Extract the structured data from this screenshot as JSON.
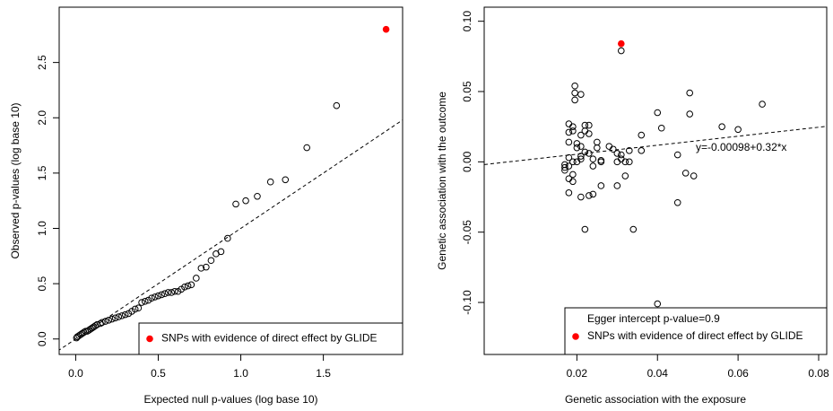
{
  "chart_data": [
    {
      "type": "scatter",
      "x_label": "Expected null p-values (log base 10)",
      "y_label": "Observed p-values (log base 10)",
      "xlim": [
        -0.1,
        1.98
      ],
      "ylim": [
        -0.14,
        3.0
      ],
      "xticks": [
        {
          "value": 0,
          "label": "0.0"
        },
        {
          "value": 0.5,
          "label": "0.5"
        },
        {
          "value": 1,
          "label": "1.0"
        },
        {
          "value": 1.5,
          "label": "1.5"
        }
      ],
      "yticks": [
        {
          "value": 0,
          "label": "0.0"
        },
        {
          "value": 0.5,
          "label": "0.5"
        },
        {
          "value": 1,
          "label": "1.0"
        },
        {
          "value": 1.5,
          "label": "1.5"
        },
        {
          "value": 2,
          "label": "2.0"
        },
        {
          "value": 2.5,
          "label": "2.5"
        }
      ],
      "diagonal": true,
      "series": [
        {
          "color": "#000000",
          "filled": false,
          "x": [
            1.58,
            1.4,
            1.27,
            1.18,
            1.1,
            1.03,
            0.97,
            0.92,
            0.88,
            0.85,
            0.82,
            0.79,
            0.76,
            0.73,
            0.7,
            0.68,
            0.66,
            0.64,
            0.62,
            0.6,
            0.58,
            0.56,
            0.54,
            0.52,
            0.5,
            0.48,
            0.46,
            0.44,
            0.42,
            0.4,
            0.38,
            0.36,
            0.34,
            0.32,
            0.3,
            0.28,
            0.26,
            0.24,
            0.22,
            0.2,
            0.18,
            0.16,
            0.15,
            0.13,
            0.12,
            0.11,
            0.1,
            0.09,
            0.08,
            0.07,
            0.06,
            0.05,
            0.04,
            0.03,
            0.02,
            0.01,
            0.005
          ],
          "values": [
            2.11,
            1.73,
            1.44,
            1.42,
            1.29,
            1.25,
            1.22,
            0.91,
            0.79,
            0.77,
            0.71,
            0.65,
            0.64,
            0.55,
            0.49,
            0.48,
            0.47,
            0.45,
            0.43,
            0.43,
            0.42,
            0.42,
            0.41,
            0.4,
            0.39,
            0.38,
            0.37,
            0.35,
            0.34,
            0.33,
            0.28,
            0.27,
            0.25,
            0.23,
            0.22,
            0.21,
            0.2,
            0.19,
            0.18,
            0.17,
            0.16,
            0.15,
            0.14,
            0.13,
            0.12,
            0.11,
            0.1,
            0.09,
            0.08,
            0.07,
            0.07,
            0.06,
            0.05,
            0.04,
            0.03,
            0.02,
            0.01
          ]
        },
        {
          "name": "SNPs with evidence of direct effect by GLIDE",
          "color": "#ff0000",
          "filled": true,
          "x": [
            1.88
          ],
          "values": [
            2.8
          ]
        }
      ]
    },
    {
      "type": "scatter",
      "x_label": "Genetic association with the exposure",
      "y_label": "Genetic association with the outcome",
      "xlim": [
        -0.003,
        0.082
      ],
      "ylim": [
        -0.137,
        0.11
      ],
      "xticks": [
        0.02,
        0.04,
        0.06,
        0.08
      ],
      "yticks": [
        {
          "value": -0.1,
          "label": "-0.10"
        },
        {
          "value": -0.05,
          "label": "-0.05"
        },
        {
          "value": 0,
          "label": "0.00"
        },
        {
          "value": 0.05,
          "label": "0.05"
        },
        {
          "value": 0.1,
          "label": "0.10"
        }
      ],
      "fit": {
        "intercept": -0.00098,
        "slope": 0.32
      },
      "fit_label": "y=-0.00098+0.32*x",
      "legend_note": "Egger intercept p-value=0.9",
      "series": [
        {
          "color": "#000000",
          "filled": false,
          "x": [
            0.031,
            0.0195,
            0.0195,
            0.021,
            0.0195,
            0.066,
            0.04,
            0.048,
            0.048,
            0.056,
            0.06,
            0.041,
            0.036,
            0.018,
            0.019,
            0.022,
            0.023,
            0.022,
            0.019,
            0.018,
            0.023,
            0.021,
            0.018,
            0.02,
            0.021,
            0.025,
            0.025,
            0.028,
            0.029,
            0.033,
            0.036,
            0.03,
            0.031,
            0.031,
            0.032,
            0.03,
            0.026,
            0.024,
            0.022,
            0.024,
            0.021,
            0.02,
            0.019,
            0.018,
            0.017,
            0.017,
            0.017,
            0.018,
            0.019,
            0.018,
            0.019,
            0.018,
            0.021,
            0.023,
            0.024,
            0.026,
            0.03,
            0.032,
            0.033,
            0.022,
            0.034,
            0.045,
            0.045,
            0.047,
            0.049,
            0.04,
            0.023,
            0.02,
            0.026,
            0.021
          ],
          "values": [
            0.079,
            0.054,
            0.049,
            0.048,
            0.044,
            0.041,
            0.035,
            0.049,
            0.034,
            0.025,
            0.023,
            0.024,
            0.019,
            0.027,
            0.025,
            0.026,
            0.026,
            0.022,
            0.022,
            0.021,
            0.02,
            0.019,
            0.014,
            0.013,
            0.011,
            0.014,
            0.01,
            0.011,
            0.009,
            0.008,
            0.008,
            0.006,
            0.005,
            0.002,
            0.0,
            0.0,
            0.001,
            0.002,
            0.007,
            -0.003,
            0.004,
            0.0,
            0.0,
            0.003,
            -0.002,
            -0.004,
            -0.006,
            -0.003,
            -0.009,
            -0.012,
            -0.014,
            -0.022,
            -0.025,
            -0.024,
            -0.023,
            -0.017,
            -0.017,
            -0.01,
            0.0,
            -0.048,
            -0.048,
            -0.029,
            0.005,
            -0.008,
            -0.01,
            -0.101,
            0.006,
            0.01,
            0.0,
            0.002
          ]
        },
        {
          "name": "SNPs with evidence of direct effect by GLIDE",
          "color": "#ff0000",
          "filled": true,
          "x": [
            0.031
          ],
          "values": [
            0.084
          ]
        }
      ]
    }
  ]
}
